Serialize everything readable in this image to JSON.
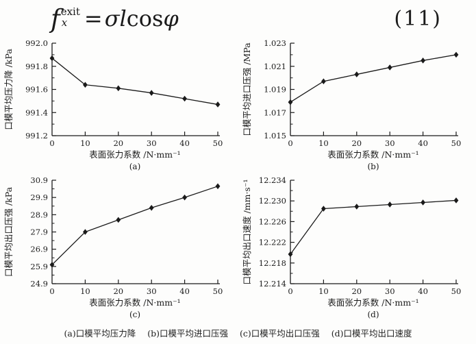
{
  "formula": {
    "f": "f",
    "sup": "exit",
    "sub": "x",
    "equals": "=",
    "sigma_l": "σl",
    "cos": "cos",
    "phi": "φ",
    "equation_number": "(11)"
  },
  "chart_data": [
    {
      "id": "a",
      "type": "line",
      "sublabel": "(a)",
      "xlabel": "表面张力系数 /N·mm⁻¹",
      "ylabel": "口模平均压力降 /kPa",
      "x": [
        0,
        10,
        20,
        30,
        40,
        50
      ],
      "values": [
        991.87,
        991.64,
        991.61,
        991.57,
        991.52,
        991.47
      ],
      "xlim": [
        0,
        50
      ],
      "ylim": [
        991.2,
        992.0
      ],
      "xticks": [
        "0",
        "10",
        "20",
        "30",
        "40",
        "50"
      ],
      "yticks": [
        "991.2",
        "991.4",
        "991.6",
        "991.8",
        "992.0"
      ],
      "marker": "diamond",
      "grid": false,
      "line_color": "#1a1a1a"
    },
    {
      "id": "b",
      "type": "line",
      "sublabel": "(b)",
      "xlabel": "表面张力系数 /N·mm⁻¹",
      "ylabel": "口模平均进口压强 /MPa",
      "x": [
        0,
        10,
        20,
        30,
        40,
        50
      ],
      "values": [
        1.0179,
        1.0197,
        1.0203,
        1.0209,
        1.0215,
        1.022
      ],
      "xlim": [
        0,
        50
      ],
      "ylim": [
        1.015,
        1.023
      ],
      "xticks": [
        "0",
        "10",
        "20",
        "30",
        "40",
        "50"
      ],
      "yticks": [
        "1.015",
        "1.017",
        "1.019",
        "1.021",
        "1.023"
      ],
      "marker": "diamond",
      "grid": false,
      "line_color": "#1a1a1a"
    },
    {
      "id": "c",
      "type": "line",
      "sublabel": "(c)",
      "xlabel": "表面张力系数 /N·mm⁻¹",
      "ylabel": "口模平均出口压强 /kPa",
      "x": [
        0,
        10,
        20,
        30,
        40,
        50
      ],
      "values": [
        26.0,
        27.9,
        28.6,
        29.3,
        29.9,
        30.55
      ],
      "xlim": [
        0,
        50
      ],
      "ylim": [
        24.9,
        30.9
      ],
      "xticks": [
        "0",
        "10",
        "20",
        "30",
        "40",
        "50"
      ],
      "yticks": [
        "24.9",
        "25.9",
        "26.9",
        "27.9",
        "28.9",
        "29.9",
        "30.9"
      ],
      "marker": "diamond",
      "grid": false,
      "line_color": "#1a1a1a"
    },
    {
      "id": "d",
      "type": "line",
      "sublabel": "(d)",
      "xlabel": "表面张力系数 /N·mm⁻¹",
      "ylabel": "口模平均出口速度 /mm·s⁻¹",
      "x": [
        0,
        10,
        20,
        30,
        40,
        50
      ],
      "values": [
        12.2197,
        12.2285,
        12.2289,
        12.2293,
        12.2297,
        12.2301
      ],
      "xlim": [
        0,
        50
      ],
      "ylim": [
        12.214,
        12.234
      ],
      "xticks": [
        "0",
        "10",
        "20",
        "30",
        "40",
        "50"
      ],
      "yticks": [
        "12.214",
        "12.218",
        "12.222",
        "12.226",
        "12.230",
        "12.234"
      ],
      "marker": "diamond",
      "grid": false,
      "line_color": "#1a1a1a"
    }
  ],
  "caption": {
    "parts": [
      "(a)口模平均压力降",
      "(b)口模平均进口压强",
      "(c)口模平均出口压强",
      "(d)口模平均出口速度"
    ]
  }
}
